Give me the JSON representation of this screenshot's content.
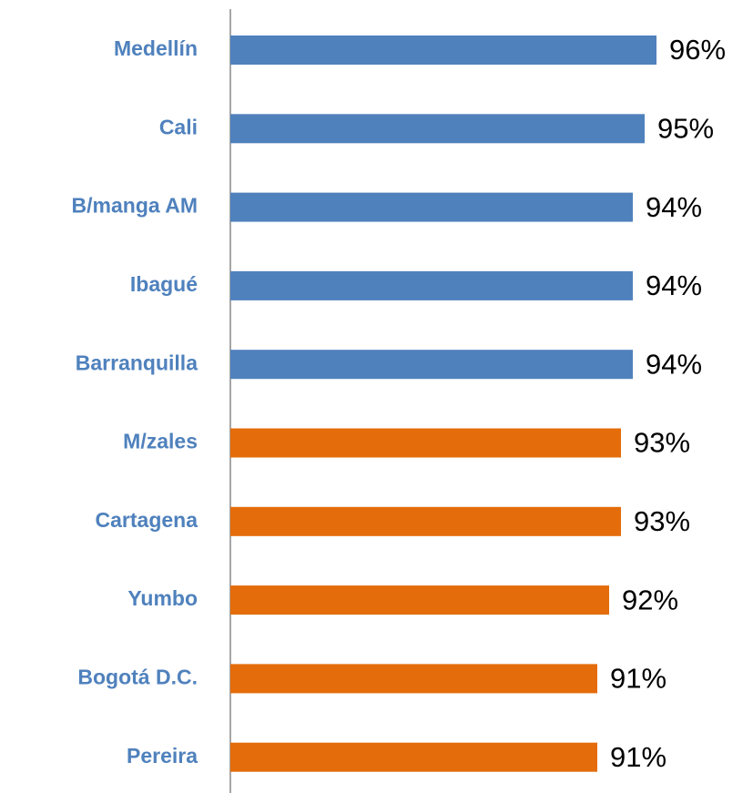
{
  "chart_data": {
    "type": "hbar",
    "categories": [
      "Medellín",
      "Cali",
      "B/manga AM",
      "Ibagué",
      "Barranquilla",
      "M/zales",
      "Cartagena",
      "Yumbo",
      "Bogotá D.C.",
      "Pereira"
    ],
    "values": [
      96,
      95,
      94,
      94,
      94,
      93,
      93,
      92,
      91,
      91
    ],
    "value_labels": [
      "96%",
      "95%",
      "94%",
      "94%",
      "94%",
      "93%",
      "93%",
      "92%",
      "91%",
      "91%"
    ],
    "colors": [
      "#4f81bd",
      "#4f81bd",
      "#4f81bd",
      "#4f81bd",
      "#4f81bd",
      "#e46c0a",
      "#e46c0a",
      "#e46c0a",
      "#e46c0a",
      "#e46c0a"
    ],
    "xlim": [
      60,
      100
    ]
  }
}
